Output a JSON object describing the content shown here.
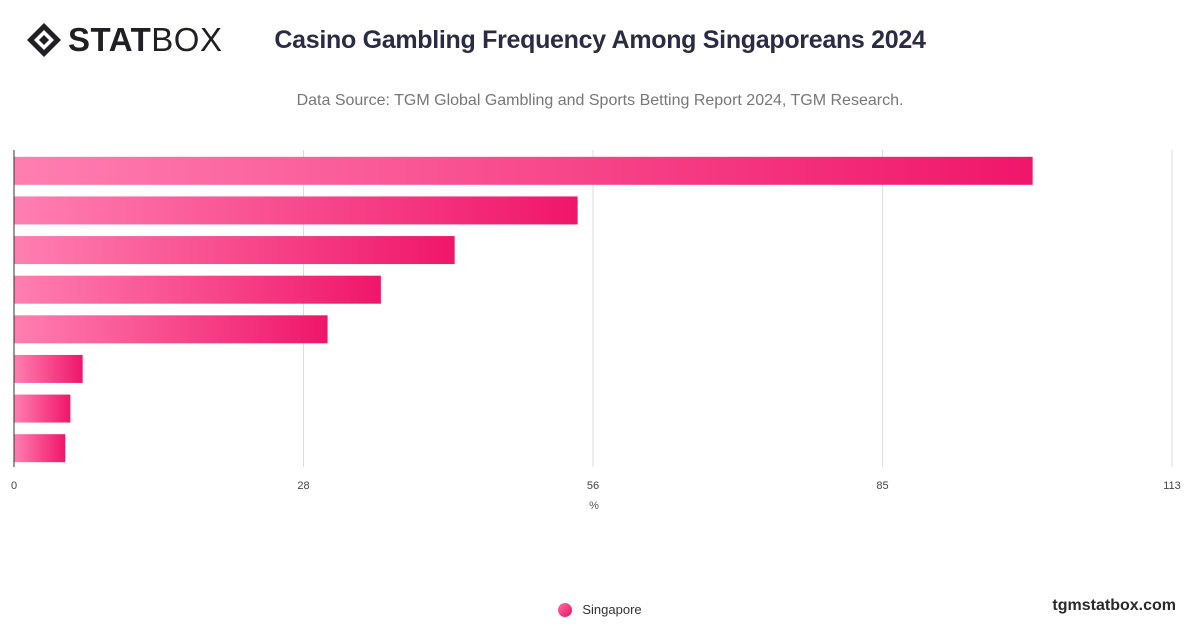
{
  "brand": {
    "logo_bold": "STAT",
    "logo_light": "BOX",
    "credit": "tgmstatbox.com"
  },
  "chart_data": {
    "type": "bar",
    "orientation": "horizontal",
    "title": "Casino Gambling Frequency Among Singaporeans 2024",
    "subtitle": "Data Source: TGM Global Gambling and Sports Betting Report 2024, TGM Research.",
    "xlabel": "%",
    "xlim": [
      0,
      113
    ],
    "xticks": [
      "0",
      "28",
      "56",
      "85",
      "113"
    ],
    "xtick_values": [
      0,
      28.25,
      56.5,
      84.75,
      113
    ],
    "grid": true,
    "legend_position": "bottom-center",
    "series": [
      {
        "name": "Singapore",
        "values": [
          99.4,
          55,
          43,
          35.8,
          30.6,
          6.7,
          5.5,
          5
        ],
        "color": "#f0166a"
      }
    ],
    "colors": {
      "bar_start": "#ff7fb1",
      "bar_end": "#f0166a"
    }
  }
}
